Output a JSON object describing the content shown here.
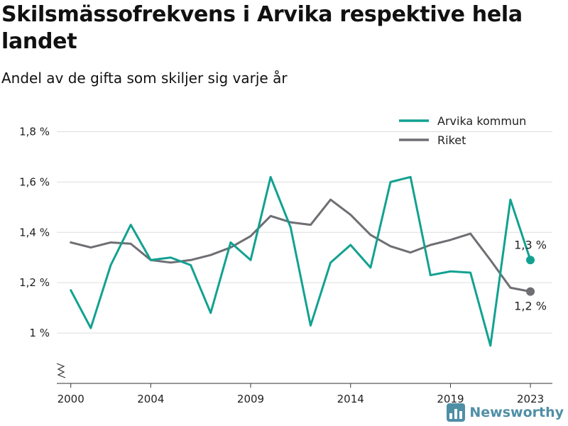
{
  "title": "Skilsmässofrekvens i Arvika respektive hela landet",
  "subtitle": "Andel av de gifta som skiljer sig varje år",
  "brand": "Newsworthy",
  "colors": {
    "arvika": "#12a191",
    "riket": "#6e6e73",
    "grid": "#dddddd",
    "axis": "#333333",
    "brand": "#4f8fa6"
  },
  "chart_data": {
    "type": "line",
    "title": "Skilsmässofrekvens i Arvika respektive hela landet",
    "subtitle": "Andel av de gifta som skiljer sig varje år",
    "x": [
      2000,
      2001,
      2002,
      2003,
      2004,
      2005,
      2006,
      2007,
      2008,
      2009,
      2010,
      2011,
      2012,
      2013,
      2014,
      2015,
      2016,
      2017,
      2018,
      2019,
      2020,
      2021,
      2022,
      2023
    ],
    "x_ticks": [
      2000,
      2004,
      2009,
      2014,
      2019,
      2023
    ],
    "y_ticks": [
      1.0,
      1.2,
      1.4,
      1.6,
      1.8
    ],
    "y_tick_labels": [
      "1 %",
      "1,2 %",
      "1,4 %",
      "1,6 %",
      "1,8 %"
    ],
    "ylim": [
      0.8,
      1.9
    ],
    "xlim": [
      1999.3,
      2024.1
    ],
    "axis_break": true,
    "grid": "horizontal",
    "legend_position": "top-right",
    "series": [
      {
        "name": "Arvika kommun",
        "color": "#12a191",
        "values": [
          1.17,
          1.02,
          1.27,
          1.43,
          1.29,
          1.3,
          1.27,
          1.08,
          1.36,
          1.29,
          1.62,
          1.42,
          1.03,
          1.28,
          1.35,
          1.26,
          1.6,
          1.62,
          1.23,
          1.245,
          1.24,
          0.95,
          1.53,
          1.29
        ],
        "end_label": "1,3 %"
      },
      {
        "name": "Riket",
        "color": "#6e6e73",
        "values": [
          1.36,
          1.34,
          1.36,
          1.355,
          1.29,
          1.28,
          1.29,
          1.31,
          1.34,
          1.385,
          1.465,
          1.44,
          1.43,
          1.53,
          1.47,
          1.39,
          1.345,
          1.32,
          1.35,
          1.37,
          1.395,
          1.29,
          1.18,
          1.165
        ],
        "end_label": "1,2 %"
      }
    ]
  }
}
